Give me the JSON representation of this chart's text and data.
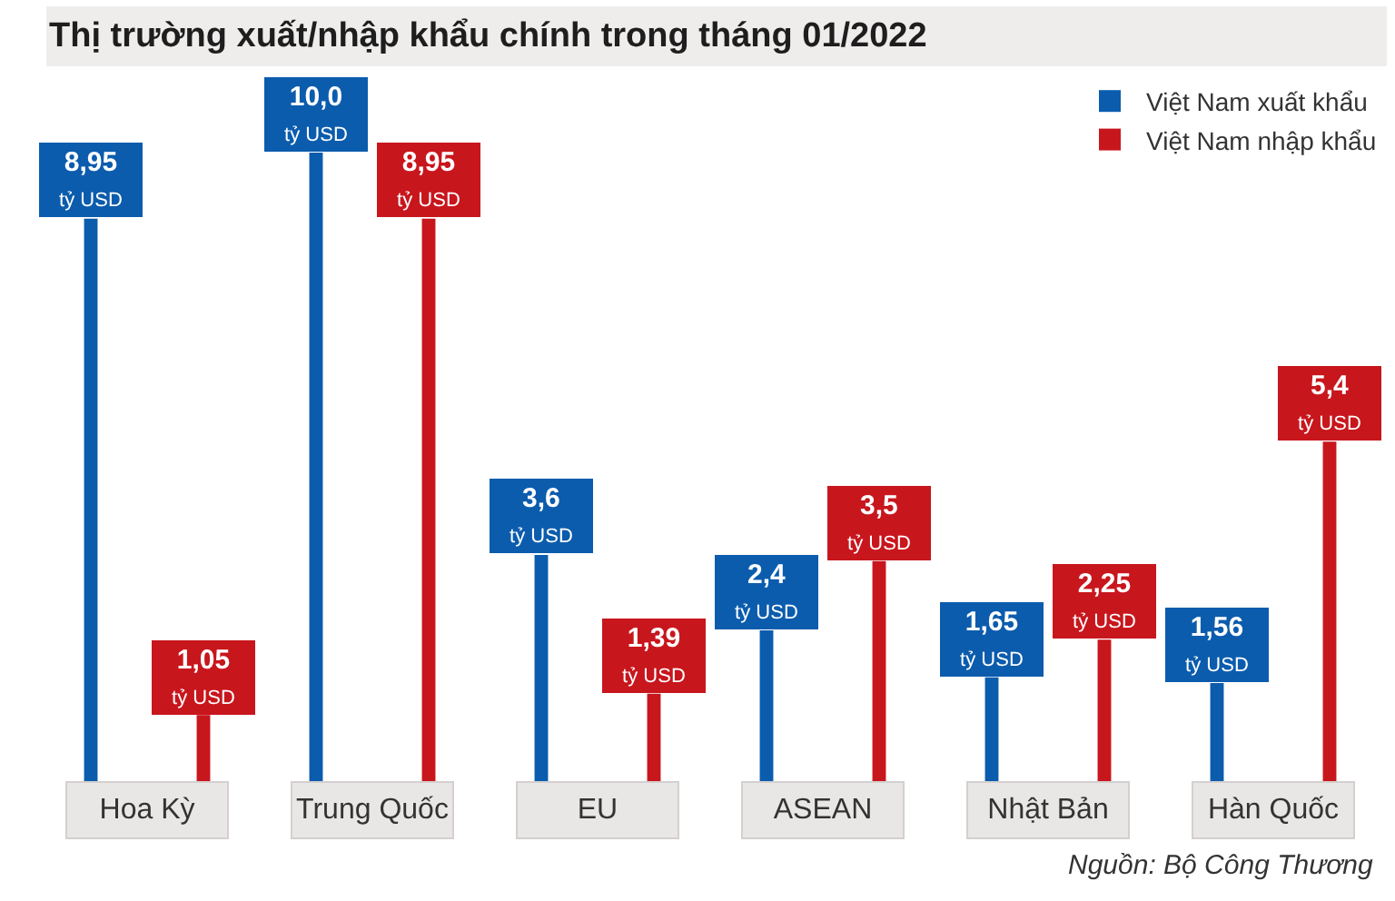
{
  "chart_data": {
    "type": "bar",
    "title": "Thị trường xuất/nhập khẩu chính trong tháng 01/2022",
    "categories": [
      "Hoa Kỳ",
      "Trung Quốc",
      "EU",
      "ASEAN",
      "Nhật Bản",
      "Hàn Quốc"
    ],
    "series": [
      {
        "name": "Việt Nam xuất khẩu",
        "color": "#0b5cad",
        "values": [
          8.95,
          10.0,
          3.6,
          2.4,
          1.65,
          1.56
        ],
        "value_labels": [
          "8,95\ntỷ USD",
          "10,0\ntỷ USD",
          "3,6\ntỷ USD",
          "2,4\ntỷ USD",
          "1,65\ntỷ USD",
          "1,56\ntỷ USD"
        ]
      },
      {
        "name": "Việt Nam nhập khẩu",
        "color": "#c8161d",
        "values": [
          1.05,
          8.95,
          1.39,
          3.5,
          2.25,
          5.4
        ],
        "value_labels": [
          "1,05\ntỷ USD",
          "8,95\ntỷ USD",
          "1,39\ntỷ USD",
          "3,5\ntỷ USD",
          "2,25\ntỷ USD",
          "5,4\ntỷ USD"
        ]
      }
    ],
    "legend": "top right",
    "tick_labels": "x",
    "annotations": [
      "Nguồn: Bộ Công Thương"
    ]
  }
}
